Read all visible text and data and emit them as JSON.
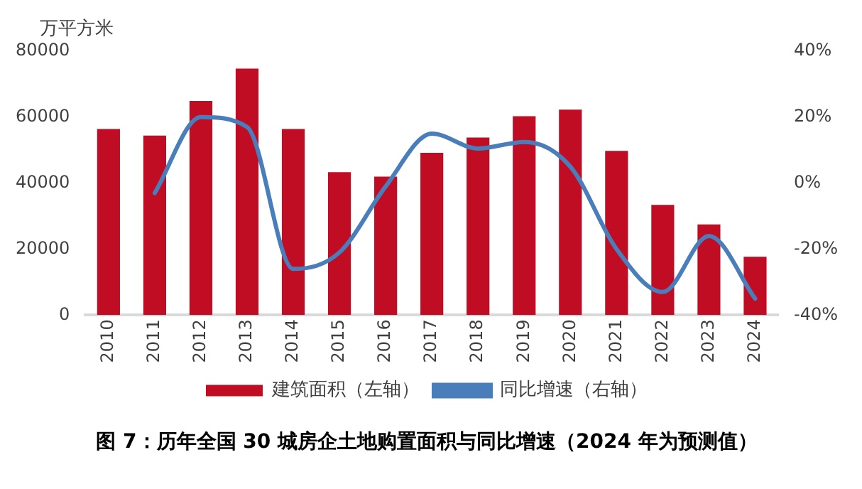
{
  "chart_data": {
    "type": "bar",
    "title": "图 7：历年全国 30 城房企土地购置面积与同比增速（2024 年为预测值）",
    "ylabel": "万平方米",
    "categories": [
      "2010",
      "2011",
      "2012",
      "2013",
      "2014",
      "2015",
      "2016",
      "2017",
      "2018",
      "2019",
      "2020",
      "2021",
      "2022",
      "2023",
      "2024"
    ],
    "series": [
      {
        "name": "建筑面积（左轴）",
        "color": "#c00d23",
        "values": [
          56400,
          54400,
          64900,
          74700,
          56400,
          43300,
          42000,
          49200,
          53800,
          60300,
          62300,
          49800,
          33400,
          27500,
          17700
        ]
      },
      {
        "name": "同比增速（右轴）",
        "type": "line",
        "axis": "y2",
        "color": "#4a7ebb",
        "values": [
          null,
          -3,
          20,
          17,
          -26,
          -21,
          -1,
          15,
          10.5,
          12.5,
          5,
          -20,
          -33,
          -16,
          -35
        ]
      }
    ],
    "ylim": [
      0,
      80000
    ],
    "yticks": [
      0,
      20000,
      40000,
      60000,
      80000
    ],
    "y2lim": [
      -40,
      40
    ],
    "y2ticks": [
      {
        "value": -40,
        "label": "-40%"
      },
      {
        "value": -20,
        "label": "-20%"
      },
      {
        "value": 0,
        "label": "0%"
      },
      {
        "value": 20,
        "label": "20%"
      },
      {
        "value": 40,
        "label": "40%"
      }
    ],
    "grid": false,
    "legend": "bottom",
    "marker": "none",
    "line_style": "solid"
  }
}
